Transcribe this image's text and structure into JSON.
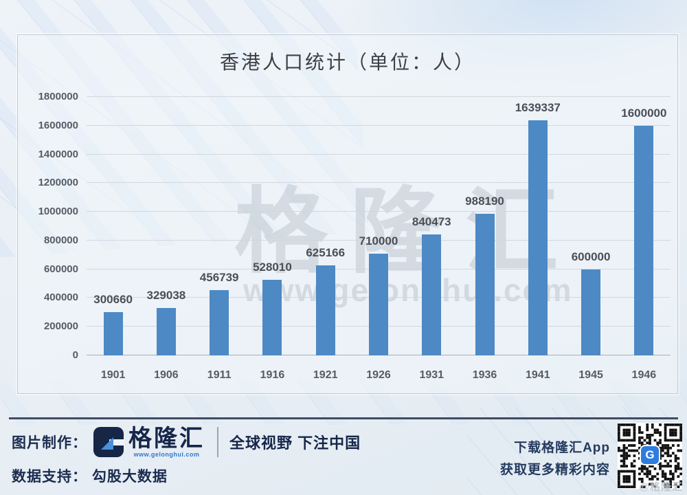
{
  "title": "香港人口统计（单位：人）",
  "chart_data": {
    "type": "bar",
    "title": "香港人口统计（单位：人）",
    "categories": [
      "1901",
      "1906",
      "1911",
      "1916",
      "1921",
      "1926",
      "1931",
      "1936",
      "1941",
      "1945",
      "1946"
    ],
    "values": [
      300660,
      329038,
      456739,
      528010,
      625166,
      710000,
      840473,
      988190,
      1639337,
      600000,
      1600000
    ],
    "xlabel": "",
    "ylabel": "",
    "ylim": [
      0,
      1800000
    ],
    "ytick_step": 200000,
    "grid": true,
    "legend": "none",
    "bar_color": "#4d89c4"
  },
  "watermark": {
    "brand": "格隆汇",
    "url": "www.gelonghui.com"
  },
  "footer": {
    "made_by_label": "图片制作：",
    "logo_letter": "G",
    "logo_text": "格隆汇",
    "logo_url": "www.gelonghui.com",
    "slogan": "全球视野 下注中国",
    "data_support_label": "数据支持：",
    "data_support_value": "勾股大数据",
    "app_line1": "下载格隆汇App",
    "app_line2": "获取更多精彩内容",
    "qr_caption": "@格隆汇"
  },
  "colors": {
    "bar": "#4d89c4",
    "navy": "#16264a",
    "accent_blue": "#2e7ce0",
    "gridline": "#d1d7dc"
  }
}
